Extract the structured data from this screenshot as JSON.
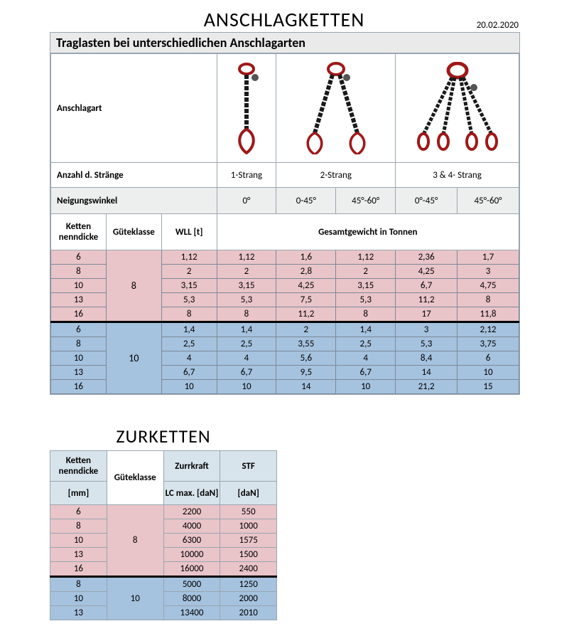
{
  "page": {
    "title": "ANSCHLAGKETTEN",
    "date": "20.02.2020",
    "colors": {
      "pink": "#e9c4c9",
      "blue": "#a5c2de",
      "gridline": "#9aa6b2",
      "header_grey": "#eaeaea",
      "header_blue": "#d8e4ec"
    }
  },
  "section1": {
    "subtitle": "Traglasten bei unterschiedlichen Anschlagarten",
    "row_anschlagart": "Anschlagart",
    "row_strands_label": "Anzahl d. Stränge",
    "strands": [
      "1-Strang",
      "2-Strang",
      "3 & 4- Strang"
    ],
    "row_angle_label": "Neigungswinkel",
    "angles": [
      "0°",
      "0-45°",
      "45°-60°",
      "0°-45°",
      "45°-60°"
    ],
    "col_headers": {
      "ketten": "Ketten nenndicke",
      "gk": "Güteklasse",
      "wll": "WLL [t]",
      "gesamt": "Gesamtgewicht in Tonnen"
    },
    "group8": {
      "label": "8",
      "rows": [
        {
          "d": "6",
          "wll": "1,12",
          "v": [
            "1,12",
            "1,6",
            "1,12",
            "2,36",
            "1,7"
          ]
        },
        {
          "d": "8",
          "wll": "2",
          "v": [
            "2",
            "2,8",
            "2",
            "4,25",
            "3"
          ]
        },
        {
          "d": "10",
          "wll": "3,15",
          "v": [
            "3,15",
            "4,25",
            "3,15",
            "6,7",
            "4,75"
          ]
        },
        {
          "d": "13",
          "wll": "5,3",
          "v": [
            "5,3",
            "7,5",
            "5,3",
            "11,2",
            "8"
          ]
        },
        {
          "d": "16",
          "wll": "8",
          "v": [
            "8",
            "11,2",
            "8",
            "17",
            "11,8"
          ]
        }
      ]
    },
    "group10": {
      "label": "10",
      "rows": [
        {
          "d": "6",
          "wll": "1,4",
          "v": [
            "1,4",
            "2",
            "1,4",
            "3",
            "2,12"
          ]
        },
        {
          "d": "8",
          "wll": "2,5",
          "v": [
            "2,5",
            "3,55",
            "2,5",
            "5,3",
            "3,75"
          ]
        },
        {
          "d": "10",
          "wll": "4",
          "v": [
            "4",
            "5,6",
            "4",
            "8,4",
            "6"
          ]
        },
        {
          "d": "13",
          "wll": "6,7",
          "v": [
            "6,7",
            "9,5",
            "6,7",
            "14",
            "10"
          ]
        },
        {
          "d": "16",
          "wll": "10",
          "v": [
            "10",
            "14",
            "10",
            "21,2",
            "15"
          ]
        }
      ]
    }
  },
  "section2": {
    "title": "ZURKETTEN",
    "headers": {
      "ketten": "Ketten nenndicke",
      "ketten_unit": "[mm]",
      "gk": "Güteklasse",
      "zurr": "Zurrkraft",
      "zurr_sub": "LC max. [daN]",
      "stf": "STF",
      "stf_sub": "[daN]"
    },
    "group8": {
      "label": "8",
      "rows": [
        {
          "d": "6",
          "lc": "2200",
          "stf": "550"
        },
        {
          "d": "8",
          "lc": "4000",
          "stf": "1000"
        },
        {
          "d": "10",
          "lc": "6300",
          "stf": "1575"
        },
        {
          "d": "13",
          "lc": "10000",
          "stf": "1500"
        },
        {
          "d": "16",
          "lc": "16000",
          "stf": "2400"
        }
      ]
    },
    "group10": {
      "label": "10",
      "rows": [
        {
          "d": "8",
          "lc": "5000",
          "stf": "1250"
        },
        {
          "d": "10",
          "lc": "8000",
          "stf": "2000"
        },
        {
          "d": "13",
          "lc": "13400",
          "stf": "2010"
        }
      ]
    }
  }
}
